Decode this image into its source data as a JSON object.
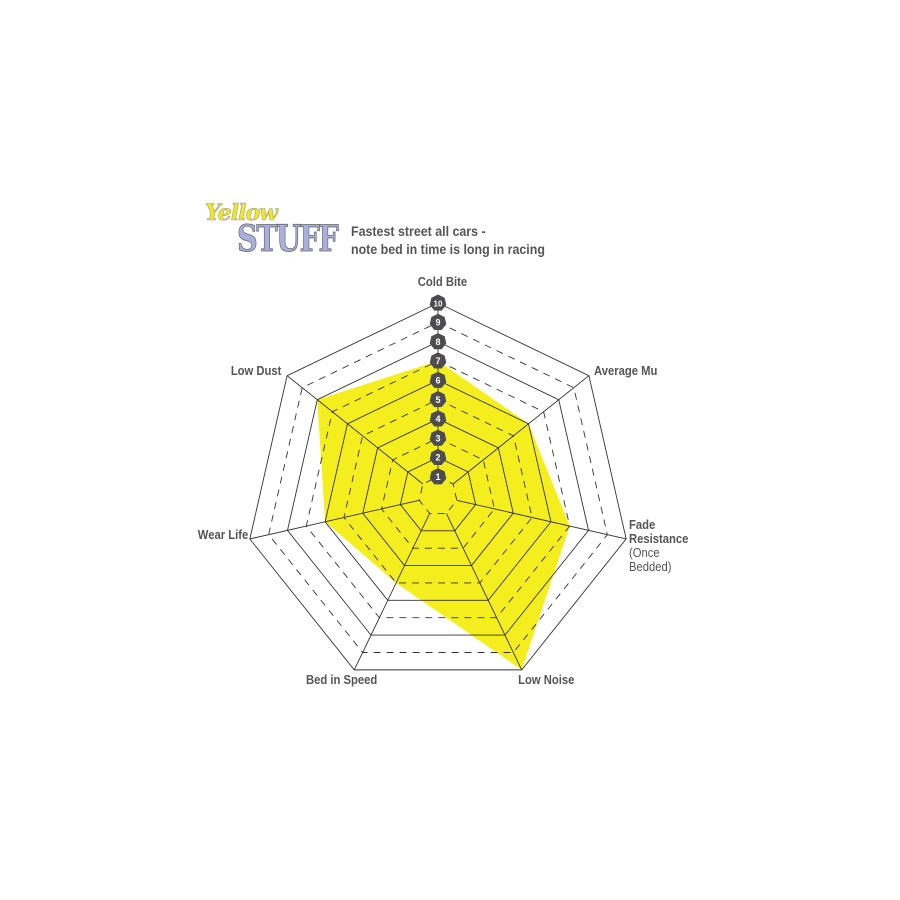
{
  "logo": {
    "line1": "Yellow",
    "line2": "STUFF"
  },
  "subtitle": [
    "Fastest street all cars -",
    "note bed in time is long in racing"
  ],
  "chart_data": {
    "type": "radar",
    "title": "",
    "axes": [
      "Cold Bite",
      "Average Mu",
      "Fade Resistance",
      "Low Noise",
      "Bed in Speed",
      "Wear Life",
      "Low Dust"
    ],
    "axis_note": {
      "Fade Resistance": "(Once Bedded)"
    },
    "values": [
      7,
      6,
      7,
      10,
      5,
      6,
      8
    ],
    "range": [
      0,
      10
    ],
    "ticks": [
      "1",
      "2",
      "3",
      "4",
      "5",
      "6",
      "7",
      "8",
      "9",
      "10"
    ],
    "fill_color": "#f5ee1e",
    "grid_color": "#333333",
    "tick_badge_color": "#4d4d4f"
  }
}
